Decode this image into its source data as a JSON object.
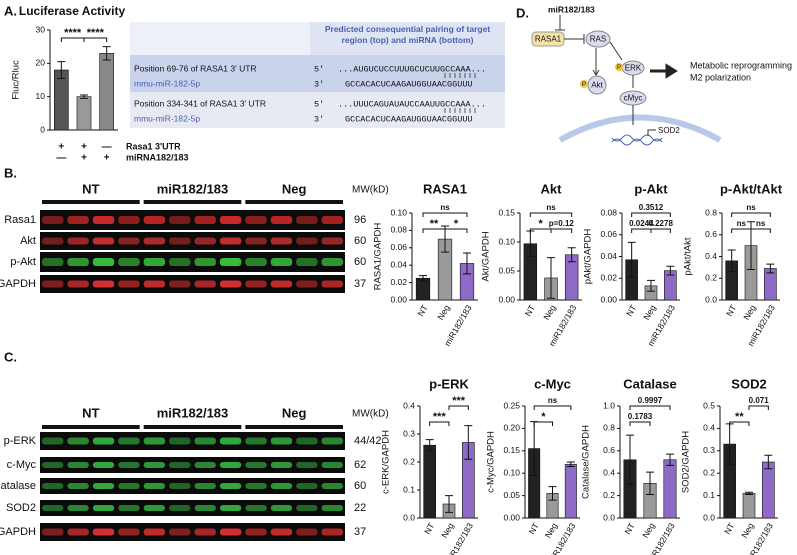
{
  "panel_labels": [
    "A.",
    "B.",
    "C.",
    "D."
  ],
  "conditions": [
    {
      "name": "Rasa1 3'UTR",
      "values": [
        "+",
        "+",
        "—"
      ]
    },
    {
      "name": "miRNA182/183",
      "values": [
        "—",
        "+",
        "+"
      ]
    }
  ],
  "table": {
    "header": "Predicted consequential pairing of target region (top) and miRNA (bottom)",
    "rows": [
      {
        "target": "Position 69-76 of RASA1 3' UTR",
        "end5": "5'",
        "seq_target": "...AUGUCUCCUUUGCUCUUGCCAAA...",
        "mirna": "mmu-miR-182-5p",
        "end3": "3'",
        "seq_mirna": "GCCACACUCAAGAUGGUAACGGUUU"
      },
      {
        "target": "Position 334-341 of RASA1 3' UTR",
        "end5": "5'",
        "seq_target": "...UUUCAGUAUAUCCAAUUGCCAAA...",
        "mirna": "mmu-miR-182-5p",
        "end3": "3'",
        "seq_mirna": "GCCACACUCAAGAUGGUAACGGUUU"
      }
    ]
  },
  "diagram": {
    "regulator": "miR182/183",
    "nodes": [
      "RASA1",
      "RAS",
      "Akt",
      "ERK",
      "cMyc",
      "SOD2"
    ],
    "phospho": "P",
    "outcome": [
      "Metabolic reprogramming",
      "M2 polarization"
    ]
  },
  "blots": [
    {
      "groups": [
        "NT",
        "miR182/183",
        "Neg"
      ],
      "mw_header": "MW(kD)",
      "rows": [
        {
          "name": "Rasa1",
          "mw": 96,
          "color": "#d42a2a"
        },
        {
          "name": "Akt",
          "mw": 60,
          "color": "#c83030"
        },
        {
          "name": "p-Akt",
          "mw": 60,
          "color": "#3cc43c"
        },
        {
          "name": "GAPDH",
          "mw": 37,
          "color": "#e03030"
        }
      ]
    },
    {
      "groups": [
        "NT",
        "miR182/183",
        "Neg"
      ],
      "mw_header": "MW(kD)",
      "rows": [
        {
          "name": "p-ERK",
          "mw": "44/42",
          "color": "#35b040"
        },
        {
          "name": "c-Myc",
          "mw": 62,
          "color": "#35b040"
        },
        {
          "name": "Catalase",
          "mw": 60,
          "color": "#35b040"
        },
        {
          "name": "SOD2",
          "mw": 22,
          "color": "#35b040"
        },
        {
          "name": "GAPDH",
          "mw": 37,
          "color": "#e03030"
        }
      ]
    }
  ],
  "chart_data": [
    {
      "type": "bar",
      "title": "Luciferase Activity",
      "ylabel": "Fluc/Rluc",
      "categories": [
        null,
        null,
        null
      ],
      "values": [
        18,
        10,
        23
      ],
      "errors": [
        2.5,
        0.5,
        2
      ],
      "colors": [
        "#555555",
        "#999999",
        "#888888"
      ],
      "ylim": [
        0,
        30
      ],
      "yticks": [
        0,
        10,
        20,
        30
      ],
      "annotations": [
        "****",
        "****"
      ]
    },
    {
      "type": "bar",
      "title": "RASA1",
      "ylabel": "RASA1/GAPDH",
      "categories": [
        "NT",
        "Neg",
        "miR182/183"
      ],
      "values": [
        0.025,
        0.07,
        0.042
      ],
      "errors": [
        0.003,
        0.015,
        0.012
      ],
      "colors": [
        "#222222",
        "#9a9a9a",
        "#8e6bc6"
      ],
      "ylim": [
        0,
        0.1
      ],
      "yticks": [
        {
          "value": 0,
          "label": "0.00"
        },
        0.02,
        0.04,
        0.06,
        0.08,
        {
          "value": 0.1,
          "label": "0.10"
        }
      ],
      "annotations": [
        "ns",
        "**",
        "*"
      ]
    },
    {
      "type": "bar",
      "title": "Akt",
      "ylabel": "Akt/GAPDH",
      "categories": [
        "NT",
        "Neg",
        "miR182/183"
      ],
      "values": [
        0.097,
        0.038,
        0.078
      ],
      "errors": [
        0.022,
        0.035,
        0.012
      ],
      "colors": [
        "#222222",
        "#9a9a9a",
        "#8e6bc6"
      ],
      "ylim": [
        0,
        0.15
      ],
      "yticks": [
        {
          "value": 0,
          "label": "0.00"
        },
        0.05,
        {
          "value": 0.1,
          "label": "0.10"
        },
        0.15
      ],
      "annotations": [
        "ns",
        "*",
        "p=0.12"
      ]
    },
    {
      "type": "bar",
      "title": "p-Akt",
      "ylabel": "pAkt/GAPDH",
      "categories": [
        "NT",
        "Neg",
        "miR182/183"
      ],
      "values": [
        0.037,
        0.013,
        0.027
      ],
      "errors": [
        0.016,
        0.005,
        0.004
      ],
      "colors": [
        "#222222",
        "#9a9a9a",
        "#8e6bc6"
      ],
      "ylim": [
        0,
        0.08
      ],
      "yticks": [
        {
          "value": 0,
          "label": "0.00"
        },
        0.02,
        0.04,
        0.06,
        0.08
      ],
      "annotations": [
        "0.3512",
        "0.0244",
        "0.2278"
      ]
    },
    {
      "type": "bar",
      "title": "p-Akt/tAkt",
      "ylabel": "pAkt/tAkt",
      "categories": [
        "NT",
        "Neg",
        "miR182/183"
      ],
      "values": [
        0.36,
        0.5,
        0.29
      ],
      "errors": [
        0.1,
        0.22,
        0.04
      ],
      "colors": [
        "#222222",
        "#9a9a9a",
        "#8e6bc6"
      ],
      "ylim": [
        0,
        0.8
      ],
      "yticks": [
        {
          "value": 0,
          "label": "0.0"
        },
        0.2,
        0.4,
        0.6,
        0.8
      ],
      "annotations": [
        "ns",
        "ns",
        "ns"
      ]
    },
    {
      "type": "bar",
      "title": "p-ERK",
      "ylabel": "c-ERK/GAPDH",
      "categories": [
        "NT",
        "Neg",
        "miR182/183"
      ],
      "values": [
        0.26,
        0.05,
        0.27
      ],
      "errors": [
        0.02,
        0.03,
        0.06
      ],
      "colors": [
        "#222222",
        "#9a9a9a",
        "#8e6bc6"
      ],
      "ylim": [
        0,
        0.4
      ],
      "yticks": [
        {
          "value": 0,
          "label": "0.0"
        },
        0.1,
        0.2,
        0.3,
        0.4
      ],
      "annotations": [
        "***",
        "***"
      ]
    },
    {
      "type": "bar",
      "title": "c-Myc",
      "ylabel": "c-Myc/GAPDH",
      "categories": [
        "NT",
        "Neg",
        "miR182/183"
      ],
      "values": [
        0.155,
        0.055,
        0.12
      ],
      "errors": [
        0.06,
        0.015,
        0.005
      ],
      "colors": [
        "#222222",
        "#9a9a9a",
        "#8e6bc6"
      ],
      "ylim": [
        0,
        0.25
      ],
      "yticks": [
        {
          "value": 0,
          "label": "0.00"
        },
        0.05,
        {
          "value": 0.1,
          "label": "0.10"
        },
        0.15,
        {
          "value": 0.2,
          "label": "0.20"
        },
        0.25
      ],
      "annotations": [
        "ns",
        "*"
      ]
    },
    {
      "type": "bar",
      "title": "Catalase",
      "ylabel": "Catalase/GAPDH",
      "categories": [
        "NT",
        "Neg",
        "miR182/183"
      ],
      "values": [
        0.52,
        0.31,
        0.52
      ],
      "errors": [
        0.22,
        0.1,
        0.05
      ],
      "colors": [
        "#222222",
        "#9a9a9a",
        "#8e6bc6"
      ],
      "ylim": [
        0,
        1
      ],
      "yticks": [
        {
          "value": 0,
          "label": "0.0"
        },
        0.2,
        0.4,
        0.6,
        0.8,
        {
          "value": 1,
          "label": "1.0"
        }
      ],
      "annotations": [
        "0.9997",
        "0.1783"
      ]
    },
    {
      "type": "bar",
      "title": "SOD2",
      "ylabel": "SOD2/GAPDH",
      "categories": [
        "NT",
        "Neg",
        "miR182/183"
      ],
      "values": [
        0.33,
        0.11,
        0.25
      ],
      "errors": [
        0.09,
        0.005,
        0.03
      ],
      "colors": [
        "#222222",
        "#9a9a9a",
        "#8e6bc6"
      ],
      "ylim": [
        0,
        0.5
      ],
      "yticks": [
        {
          "value": 0,
          "label": "0.0"
        },
        0.1,
        0.2,
        0.3,
        0.4,
        0.5
      ],
      "annotations": [
        "**",
        "0.071"
      ]
    }
  ]
}
